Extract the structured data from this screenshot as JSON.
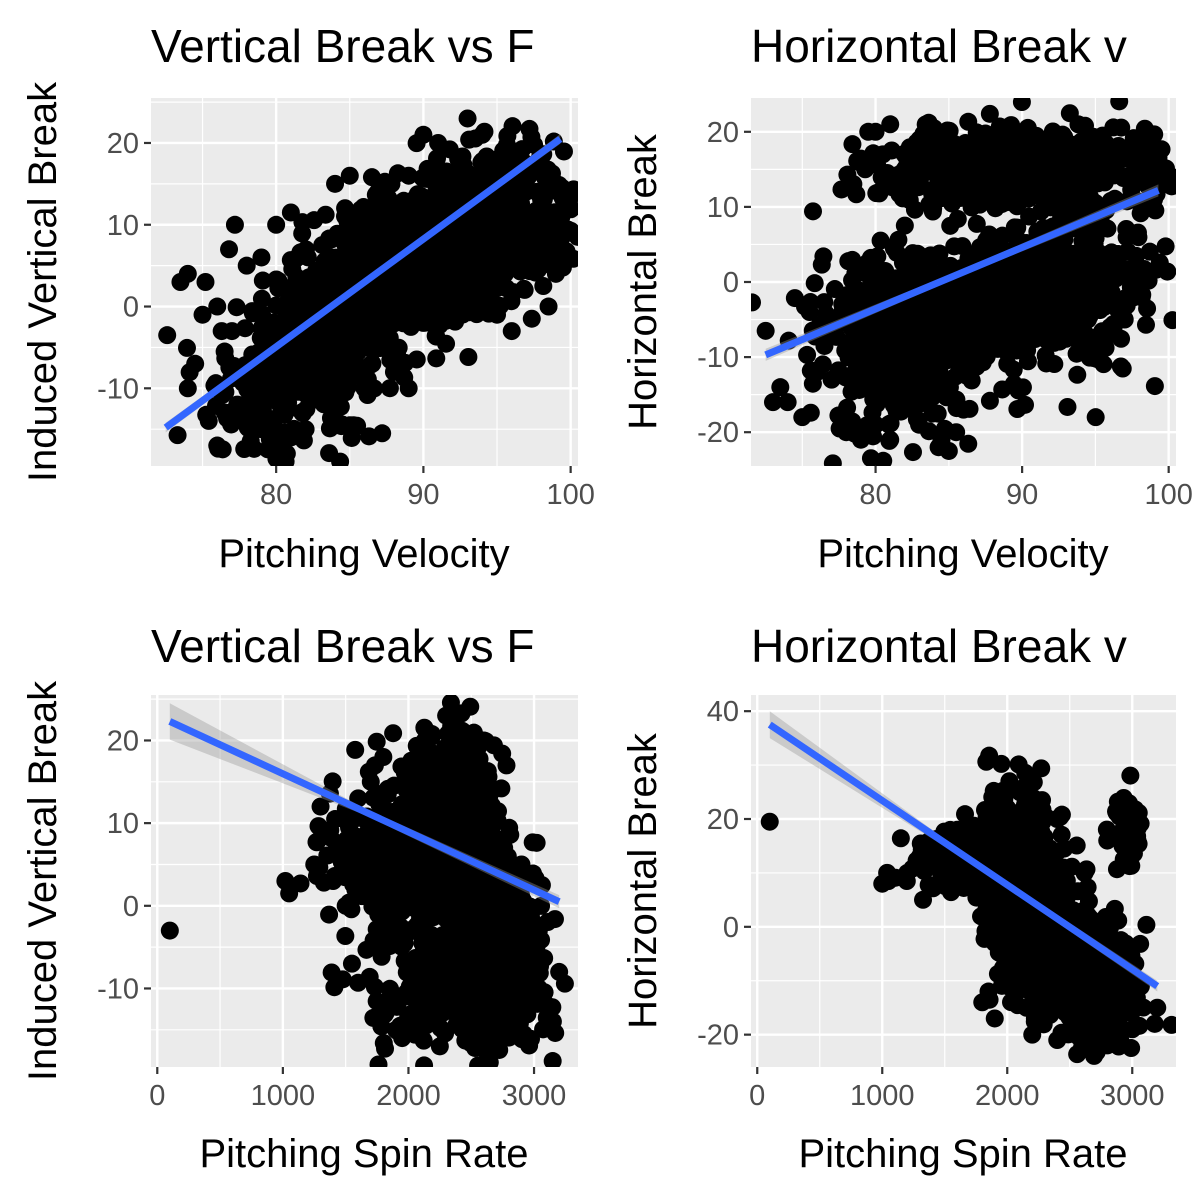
{
  "colors": {
    "panel_bg": "#ebebeb",
    "grid": "#ffffff",
    "points": "#000000",
    "fit_line": "#3366ff",
    "ci_band": "#999999",
    "tick_text": "#4d4d4d",
    "tick_mark": "#333333"
  },
  "chart_data": [
    {
      "type": "scatter",
      "title": "Vertical Break vs F",
      "xlabel": "Pitching Velocity",
      "ylabel": "Induced Vertical Break",
      "xlim": [
        71.5,
        100.5
      ],
      "ylim": [
        -19.5,
        25.5
      ],
      "xticks": [
        80,
        90,
        100
      ],
      "xtick_labels": [
        "80",
        "90",
        "100"
      ],
      "yticks": [
        -10,
        0,
        10,
        20
      ],
      "ytick_labels": [
        "-10",
        "0",
        "10",
        "20"
      ],
      "grid": true,
      "fit": {
        "method": "linear",
        "x": [
          72.5,
          99.3
        ],
        "y": [
          -14.8,
          20.5
        ],
        "ci_halfwidth": [
          0.6,
          0.3,
          0.6
        ]
      },
      "clusters": [
        {
          "cx": 83.5,
          "cy": -3,
          "sx": 3.2,
          "sy": 6,
          "rho": 0.55,
          "n": 800
        },
        {
          "cx": 92,
          "cy": 8,
          "sx": 3.8,
          "sy": 5,
          "rho": 0.4,
          "n": 1000
        }
      ],
      "points": [
        [
          72.6,
          -3.5
        ],
        [
          73.5,
          3
        ],
        [
          74,
          4
        ],
        [
          74.5,
          -7
        ],
        [
          75.2,
          3
        ],
        [
          76,
          -17
        ],
        [
          76.3,
          -3
        ],
        [
          76.5,
          -5.5
        ],
        [
          77,
          -3
        ],
        [
          76.8,
          7
        ],
        [
          77.2,
          10
        ],
        [
          78,
          -13
        ],
        [
          79,
          -15
        ],
        [
          80,
          -17
        ],
        [
          81,
          -16
        ],
        [
          82,
          -15
        ],
        [
          87.2,
          -15.5
        ],
        [
          86,
          -10
        ],
        [
          88,
          -8
        ],
        [
          89,
          -10
        ],
        [
          90,
          -2
        ],
        [
          92,
          11
        ],
        [
          93,
          23
        ],
        [
          94,
          21
        ],
        [
          95,
          -1
        ],
        [
          96,
          -3
        ],
        [
          97.5,
          17
        ],
        [
          98,
          13
        ],
        [
          99,
          4
        ],
        [
          98.5,
          0
        ],
        [
          76,
          0
        ],
        [
          75,
          -1
        ],
        [
          74,
          -10
        ],
        [
          78,
          5
        ],
        [
          79,
          6
        ],
        [
          80,
          10
        ],
        [
          81,
          11.5
        ],
        [
          85,
          16
        ],
        [
          84,
          15
        ],
        [
          89,
          16
        ],
        [
          91,
          20
        ],
        [
          90,
          21
        ]
      ]
    },
    {
      "type": "scatter",
      "title": "Horizontal Break v",
      "xlabel": "Pitching Velocity",
      "ylabel": "Horizontal Break",
      "xlim": [
        71.5,
        100.5
      ],
      "ylim": [
        -24.5,
        24.5
      ],
      "xticks": [
        80,
        90,
        100
      ],
      "xtick_labels": [
        "80",
        "90",
        "100"
      ],
      "yticks": [
        -20,
        -10,
        0,
        10,
        20
      ],
      "ytick_labels": [
        "-20",
        "-10",
        "0",
        "10",
        "20"
      ],
      "grid": true,
      "fit": {
        "method": "linear",
        "x": [
          72.5,
          99.3
        ],
        "y": [
          -9.7,
          12.2
        ],
        "ci_halfwidth": [
          0.8,
          0.4,
          0.8
        ]
      },
      "clusters": [
        {
          "cx": 90,
          "cy": 15,
          "sx": 5,
          "sy": 2.8,
          "rho": 0,
          "n": 550
        },
        {
          "cx": 82,
          "cy": -8,
          "sx": 3,
          "sy": 5.5,
          "rho": 0,
          "n": 450
        },
        {
          "cx": 92.5,
          "cy": 0,
          "sx": 3.2,
          "sy": 5.5,
          "rho": 0.1,
          "n": 500
        },
        {
          "cx": 85.5,
          "cy": -3,
          "sx": 4,
          "sy": 3,
          "rho": 0.2,
          "n": 300
        }
      ],
      "points": [
        [
          72.5,
          -6.5
        ],
        [
          73,
          -16
        ],
        [
          73.5,
          -14
        ],
        [
          74,
          -16
        ],
        [
          75,
          -18
        ],
        [
          75.5,
          -4
        ],
        [
          76,
          -12
        ],
        [
          77,
          -13
        ],
        [
          78,
          -20
        ],
        [
          79,
          -21
        ],
        [
          80,
          -19
        ],
        [
          81,
          -21
        ],
        [
          84.3,
          -22
        ],
        [
          85,
          -22.5
        ],
        [
          85.5,
          -20
        ],
        [
          86,
          -17
        ],
        [
          87,
          -10
        ],
        [
          88,
          -5
        ],
        [
          95,
          -8
        ],
        [
          96,
          -6
        ],
        [
          97,
          -5
        ],
        [
          99,
          11
        ],
        [
          98,
          18
        ],
        [
          80,
          20
        ],
        [
          81,
          21
        ],
        [
          79.5,
          20
        ],
        [
          80.5,
          17
        ],
        [
          83,
          19
        ],
        [
          85,
          20
        ],
        [
          86,
          18
        ],
        [
          87,
          16
        ],
        [
          88,
          15
        ],
        [
          83,
          2
        ],
        [
          82,
          1
        ]
      ]
    },
    {
      "type": "scatter",
      "title": "Vertical Break vs F",
      "xlabel": "Pitching Spin Rate",
      "ylabel": "Induced Vertical Break",
      "xlim": [
        -50,
        3350
      ],
      "ylim": [
        -19.5,
        25.5
      ],
      "xticks": [
        0,
        1000,
        2000,
        3000
      ],
      "xtick_labels": [
        "0",
        "1000",
        "2000",
        "3000"
      ],
      "yticks": [
        -10,
        0,
        10,
        20
      ],
      "ytick_labels": [
        "-10",
        "0",
        "10",
        "20"
      ],
      "grid": true,
      "fit": {
        "method": "linear",
        "x": [
          100,
          3200
        ],
        "y": [
          22.3,
          0.5
        ],
        "ci_halfwidth": [
          2.2,
          0.4,
          0.8
        ]
      },
      "clusters": [
        {
          "cx": 2300,
          "cy": 11,
          "sx": 170,
          "sy": 5,
          "rho": 0,
          "n": 650
        },
        {
          "cx": 2700,
          "cy": -5,
          "sx": 200,
          "sy": 6,
          "rho": -0.2,
          "n": 600
        },
        {
          "cx": 1900,
          "cy": 6,
          "sx": 280,
          "sy": 4,
          "rho": 0,
          "n": 350
        },
        {
          "cx": 2200,
          "cy": -8,
          "sx": 300,
          "sy": 5,
          "rho": 0,
          "n": 200
        }
      ],
      "points": [
        [
          100,
          -3
        ],
        [
          1020,
          3
        ],
        [
          1050,
          1.5
        ],
        [
          1250,
          5
        ],
        [
          1300,
          12
        ],
        [
          1400,
          3
        ],
        [
          1500,
          0
        ],
        [
          1550,
          -7
        ],
        [
          1600,
          13
        ],
        [
          1700,
          15
        ],
        [
          1800,
          18
        ],
        [
          1900,
          -15
        ],
        [
          1950,
          -16
        ],
        [
          2000,
          -14
        ],
        [
          2100,
          -14
        ],
        [
          2200,
          -14
        ],
        [
          2250,
          -17
        ],
        [
          2300,
          23
        ],
        [
          2400,
          21
        ],
        [
          2500,
          20
        ],
        [
          2600,
          20
        ],
        [
          2700,
          -17
        ],
        [
          2800,
          -15
        ],
        [
          3200,
          -8
        ],
        [
          3150,
          -14
        ],
        [
          3100,
          -12
        ],
        [
          2900,
          5
        ],
        [
          3000,
          -3
        ]
      ]
    },
    {
      "type": "scatter",
      "title": "Horizontal Break v",
      "xlabel": "Pitching Spin Rate",
      "ylabel": "Horizontal Break",
      "xlim": [
        -50,
        3350
      ],
      "ylim": [
        -26,
        43
      ],
      "xticks": [
        0,
        1000,
        2000,
        3000
      ],
      "xtick_labels": [
        "0",
        "1000",
        "2000",
        "3000"
      ],
      "yticks": [
        -20,
        0,
        20,
        40
      ],
      "ytick_labels": [
        "-20",
        "0",
        "20",
        "40"
      ],
      "grid": true,
      "fit": {
        "method": "linear",
        "x": [
          100,
          3200
        ],
        "y": [
          37.5,
          -11
        ],
        "ci_halfwidth": [
          2.5,
          0.5,
          1
        ]
      },
      "clusters": [
        {
          "cx": 2150,
          "cy": 8,
          "sx": 160,
          "sy": 8,
          "rho": -0.2,
          "n": 700
        },
        {
          "cx": 2550,
          "cy": -8,
          "sx": 230,
          "sy": 6,
          "rho": -0.3,
          "n": 650
        },
        {
          "cx": 1700,
          "cy": 13,
          "sx": 250,
          "sy": 3,
          "rho": 0,
          "n": 250
        },
        {
          "cx": 2950,
          "cy": 18,
          "sx": 70,
          "sy": 3,
          "rho": 0,
          "n": 60
        }
      ],
      "points": [
        [
          100,
          19.5
        ],
        [
          1000,
          8
        ],
        [
          1050,
          8.5
        ],
        [
          1200,
          10
        ],
        [
          1300,
          13
        ],
        [
          1450,
          12
        ],
        [
          1900,
          -3
        ],
        [
          1950,
          -5
        ],
        [
          1850,
          -12
        ],
        [
          1800,
          -14
        ],
        [
          1900,
          -17
        ],
        [
          2200,
          -20
        ],
        [
          2400,
          -21
        ],
        [
          2600,
          -20
        ],
        [
          2800,
          -22
        ],
        [
          2700,
          -21
        ],
        [
          3000,
          -19
        ],
        [
          3200,
          -15
        ],
        [
          3180,
          -18
        ],
        [
          2900,
          22
        ],
        [
          3000,
          21
        ],
        [
          2800,
          16
        ],
        [
          2000,
          22
        ],
        [
          2400,
          20
        ],
        [
          1600,
          18
        ],
        [
          2100,
          19
        ]
      ]
    }
  ]
}
